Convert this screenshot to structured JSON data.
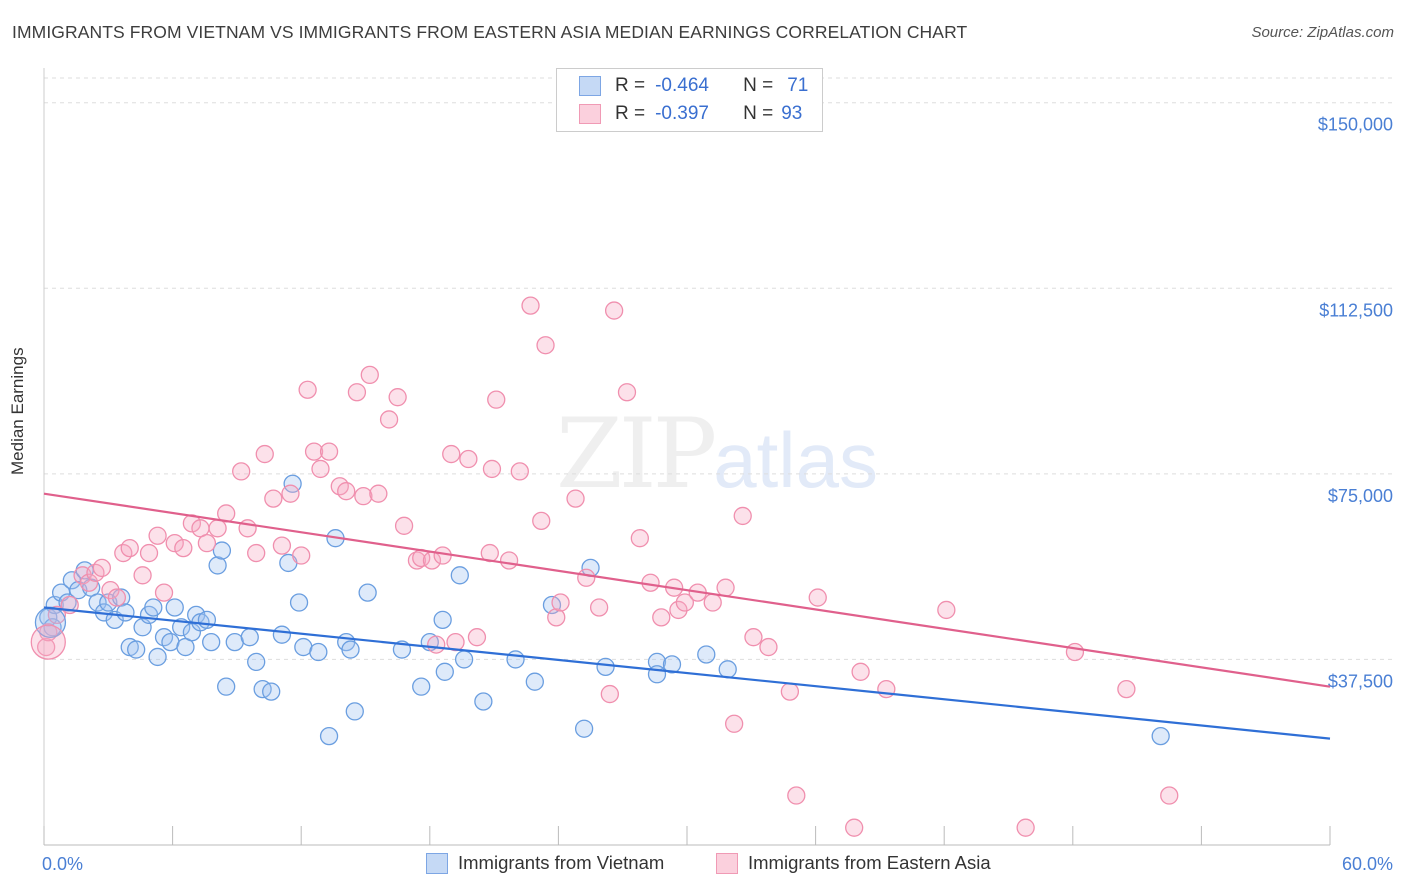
{
  "title": "IMMIGRANTS FROM VIETNAM VS IMMIGRANTS FROM EASTERN ASIA MEDIAN EARNINGS CORRELATION CHART",
  "source": "Source: ZipAtlas.com",
  "watermark": {
    "zip": "ZIP",
    "atlas": "atlas"
  },
  "legend": {
    "vietnam": {
      "r_label": "R =",
      "r_value": "-0.464",
      "n_label": "N =",
      "n_value": "71"
    },
    "eastern_asia": {
      "r_label": "R =",
      "r_value": "-0.397",
      "n_label": "N =",
      "n_value": "93"
    }
  },
  "colors": {
    "vietnam": "#6a9ee0",
    "eastern_asia": "#f08fae",
    "vietnam_line": "#2f6fd6",
    "eastern_asia_line": "#e0608c",
    "tick": "#4a7fd4"
  },
  "chart_data": {
    "type": "scatter",
    "title": "IMMIGRANTS FROM VIETNAM VS IMMIGRANTS FROM EASTERN ASIA MEDIAN EARNINGS CORRELATION CHART",
    "xlabel": "",
    "ylabel": "Median Earnings",
    "xlim": [
      0,
      60
    ],
    "ylim": [
      0,
      155000
    ],
    "x_tick_labels": [
      "0.0%",
      "60.0%"
    ],
    "y_ticks": [
      37500,
      75000,
      112500,
      150000
    ],
    "y_tick_labels": [
      "$37,500",
      "$75,000",
      "$112,500",
      "$150,000"
    ],
    "grid": true,
    "legend_position": "top-center",
    "series": [
      {
        "name": "Immigrants from Vietnam",
        "trend": [
          [
            0,
            48000
          ],
          [
            60,
            21500
          ]
        ],
        "points": [
          [
            0.2,
            46000
          ],
          [
            0.4,
            44000
          ],
          [
            0.5,
            48500
          ],
          [
            0.8,
            51000
          ],
          [
            1.1,
            49000
          ],
          [
            1.3,
            53500
          ],
          [
            1.6,
            51500
          ],
          [
            1.9,
            55500
          ],
          [
            2.2,
            52000
          ],
          [
            2.5,
            49000
          ],
          [
            2.8,
            47000
          ],
          [
            3.0,
            49000
          ],
          [
            3.3,
            45500
          ],
          [
            3.6,
            50000
          ],
          [
            3.8,
            47000
          ],
          [
            4.0,
            40000
          ],
          [
            4.3,
            39500
          ],
          [
            4.6,
            44000
          ],
          [
            4.9,
            46500
          ],
          [
            5.1,
            48000
          ],
          [
            5.3,
            38000
          ],
          [
            5.6,
            42000
          ],
          [
            5.9,
            41000
          ],
          [
            6.1,
            48000
          ],
          [
            6.4,
            44000
          ],
          [
            6.6,
            40000
          ],
          [
            6.9,
            43000
          ],
          [
            7.1,
            46500
          ],
          [
            7.3,
            45000
          ],
          [
            7.6,
            45500
          ],
          [
            7.8,
            41000
          ],
          [
            8.1,
            56500
          ],
          [
            8.3,
            59500
          ],
          [
            8.5,
            32000
          ],
          [
            8.9,
            41000
          ],
          [
            9.6,
            42000
          ],
          [
            9.9,
            37000
          ],
          [
            10.2,
            31500
          ],
          [
            10.6,
            31000
          ],
          [
            11.1,
            42500
          ],
          [
            11.4,
            57000
          ],
          [
            11.6,
            73000
          ],
          [
            11.9,
            49000
          ],
          [
            12.1,
            40000
          ],
          [
            12.8,
            39000
          ],
          [
            13.3,
            22000
          ],
          [
            13.6,
            62000
          ],
          [
            14.1,
            41000
          ],
          [
            14.3,
            39500
          ],
          [
            14.5,
            27000
          ],
          [
            15.1,
            51000
          ],
          [
            16.7,
            39500
          ],
          [
            17.6,
            32000
          ],
          [
            18.0,
            41000
          ],
          [
            18.6,
            45500
          ],
          [
            18.7,
            35000
          ],
          [
            19.4,
            54500
          ],
          [
            19.6,
            37500
          ],
          [
            20.5,
            29000
          ],
          [
            22.0,
            37500
          ],
          [
            22.9,
            33000
          ],
          [
            23.7,
            48500
          ],
          [
            25.2,
            23500
          ],
          [
            25.5,
            56000
          ],
          [
            26.2,
            36000
          ],
          [
            28.6,
            37000
          ],
          [
            28.6,
            34500
          ],
          [
            29.3,
            36500
          ],
          [
            30.9,
            38500
          ],
          [
            31.9,
            35500
          ],
          [
            52.1,
            22000
          ]
        ]
      },
      {
        "name": "Immigrants from Eastern Asia",
        "trend": [
          [
            0,
            71000
          ],
          [
            60,
            32000
          ]
        ],
        "points": [
          [
            0.1,
            40000
          ],
          [
            0.2,
            43000
          ],
          [
            0.6,
            46500
          ],
          [
            1.2,
            48500
          ],
          [
            1.8,
            54500
          ],
          [
            2.1,
            53000
          ],
          [
            2.4,
            55000
          ],
          [
            2.7,
            56000
          ],
          [
            3.1,
            51500
          ],
          [
            3.4,
            50000
          ],
          [
            3.7,
            59000
          ],
          [
            4.0,
            60000
          ],
          [
            4.6,
            54500
          ],
          [
            4.9,
            59000
          ],
          [
            5.3,
            62500
          ],
          [
            5.6,
            51000
          ],
          [
            6.1,
            61000
          ],
          [
            6.5,
            60000
          ],
          [
            6.9,
            65000
          ],
          [
            7.3,
            64000
          ],
          [
            7.6,
            61000
          ],
          [
            8.1,
            64000
          ],
          [
            8.5,
            67000
          ],
          [
            9.2,
            75500
          ],
          [
            9.5,
            64000
          ],
          [
            9.9,
            59000
          ],
          [
            10.3,
            79000
          ],
          [
            10.7,
            70000
          ],
          [
            11.1,
            60500
          ],
          [
            11.5,
            71000
          ],
          [
            12.0,
            58500
          ],
          [
            12.3,
            92000
          ],
          [
            12.6,
            79500
          ],
          [
            12.9,
            76000
          ],
          [
            13.3,
            79500
          ],
          [
            13.8,
            72500
          ],
          [
            14.1,
            71500
          ],
          [
            14.6,
            91500
          ],
          [
            14.9,
            70500
          ],
          [
            15.2,
            95000
          ],
          [
            15.6,
            71000
          ],
          [
            16.1,
            86000
          ],
          [
            16.5,
            90500
          ],
          [
            16.8,
            64500
          ],
          [
            17.4,
            57500
          ],
          [
            17.6,
            58000
          ],
          [
            18.1,
            57500
          ],
          [
            18.3,
            40500
          ],
          [
            18.6,
            58500
          ],
          [
            19.0,
            79000
          ],
          [
            19.2,
            41000
          ],
          [
            19.8,
            78000
          ],
          [
            20.2,
            42000
          ],
          [
            20.8,
            59000
          ],
          [
            20.9,
            76000
          ],
          [
            21.1,
            90000
          ],
          [
            21.7,
            57500
          ],
          [
            22.2,
            75500
          ],
          [
            22.7,
            109000
          ],
          [
            23.2,
            65500
          ],
          [
            23.4,
            101000
          ],
          [
            23.9,
            46000
          ],
          [
            24.1,
            49000
          ],
          [
            24.8,
            70000
          ],
          [
            25.3,
            54000
          ],
          [
            25.9,
            48000
          ],
          [
            26.4,
            30500
          ],
          [
            26.6,
            108000
          ],
          [
            27.2,
            91500
          ],
          [
            27.8,
            62000
          ],
          [
            28.3,
            53000
          ],
          [
            28.8,
            46000
          ],
          [
            29.4,
            52000
          ],
          [
            29.6,
            47500
          ],
          [
            29.9,
            49000
          ],
          [
            30.5,
            51000
          ],
          [
            31.2,
            49000
          ],
          [
            31.8,
            52000
          ],
          [
            32.2,
            24500
          ],
          [
            32.6,
            66500
          ],
          [
            33.1,
            42000
          ],
          [
            33.8,
            40000
          ],
          [
            34.8,
            31000
          ],
          [
            35.1,
            10000
          ],
          [
            36.1,
            50000
          ],
          [
            37.8,
            3500
          ],
          [
            38.1,
            35000
          ],
          [
            39.3,
            31500
          ],
          [
            42.1,
            47500
          ],
          [
            45.8,
            3500
          ],
          [
            48.1,
            39000
          ],
          [
            50.5,
            31500
          ],
          [
            52.5,
            10000
          ]
        ]
      }
    ]
  }
}
